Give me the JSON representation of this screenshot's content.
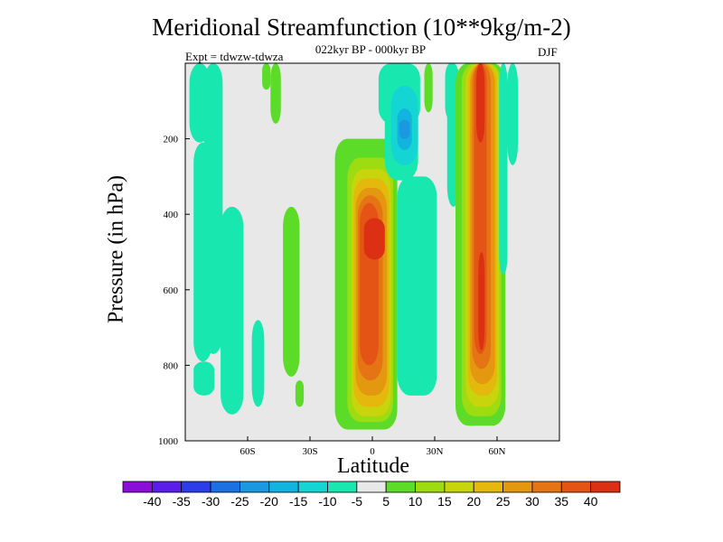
{
  "chart_data": {
    "type": "heatmap",
    "title": "Meridional Streamfunction (10**9kg/m-2)",
    "subtitle": "022kyr BP - 000kyr BP",
    "left_label": "Expt = tdwzw-tdwza",
    "right_label": "DJF",
    "xlabel": "Latitude",
    "ylabel": "Pressure (in hPa)",
    "xlim": [
      -90,
      90
    ],
    "ylim": [
      1000,
      0
    ],
    "x_ticks": [
      {
        "value": -60,
        "label": "60S"
      },
      {
        "value": -30,
        "label": "30S"
      },
      {
        "value": 0,
        "label": "0"
      },
      {
        "value": 30,
        "label": "30N"
      },
      {
        "value": 60,
        "label": "60N"
      }
    ],
    "y_ticks": [
      {
        "value": 200,
        "label": "200"
      },
      {
        "value": 400,
        "label": "400"
      },
      {
        "value": 600,
        "label": "600"
      },
      {
        "value": 800,
        "label": "800"
      },
      {
        "value": 1000,
        "label": "1000"
      }
    ],
    "background_color": "#e8e8e8",
    "colorbar": {
      "labels": [
        "-40",
        "-35",
        "-30",
        "-25",
        "-20",
        "-15",
        "-10",
        "-5",
        "5",
        "10",
        "15",
        "20",
        "25",
        "30",
        "35",
        "40"
      ],
      "colors": [
        "#8a0ed8",
        "#5a1ee8",
        "#2c3ce8",
        "#1c70e0",
        "#1c98e0",
        "#10b4dc",
        "#14d4d4",
        "#18e8b0",
        "#e8e8e8",
        "#5cdc28",
        "#9cdc10",
        "#c8d40c",
        "#e4b80c",
        "#e49810",
        "#e47414",
        "#e45414",
        "#dc3014"
      ]
    },
    "regions": [
      {
        "lat_min": -88,
        "lat_max": -78,
        "p_top": 0,
        "p_bottom": 210,
        "value": -7,
        "color": "#18e8b0"
      },
      {
        "lat_min": -86,
        "lat_max": -77,
        "p_top": 210,
        "p_bottom": 790,
        "value": -7,
        "color": "#18e8b0"
      },
      {
        "lat_min": -86,
        "lat_max": -76,
        "p_top": 790,
        "p_bottom": 880,
        "value": -7,
        "color": "#18e8b0"
      },
      {
        "lat_min": -81,
        "lat_max": -72,
        "p_top": 0,
        "p_bottom": 770,
        "value": -7,
        "color": "#18e8b0"
      },
      {
        "lat_min": -73,
        "lat_max": -62,
        "p_top": 380,
        "p_bottom": 930,
        "value": -7,
        "color": "#18e8b0"
      },
      {
        "lat_min": -58,
        "lat_max": -52,
        "p_top": 680,
        "p_bottom": 910,
        "value": -7,
        "color": "#18e8b0"
      },
      {
        "lat_min": -53,
        "lat_max": -49,
        "p_top": 0,
        "p_bottom": 70,
        "value": 7,
        "color": "#5cdc28"
      },
      {
        "lat_min": -49,
        "lat_max": -44,
        "p_top": 0,
        "p_bottom": 160,
        "value": 7,
        "color": "#5cdc28"
      },
      {
        "lat_min": -43,
        "lat_max": -35,
        "p_top": 380,
        "p_bottom": 830,
        "value": 7,
        "color": "#5cdc28"
      },
      {
        "lat_min": -37,
        "lat_max": -33,
        "p_top": 840,
        "p_bottom": 910,
        "value": 7,
        "color": "#5cdc28"
      },
      {
        "lat_min": -18,
        "lat_max": 12,
        "p_top": 200,
        "p_bottom": 970,
        "value": 7,
        "color": "#5cdc28"
      },
      {
        "lat_min": -12,
        "lat_max": 10,
        "p_top": 250,
        "p_bottom": 950,
        "value": 12,
        "color": "#9cdc10"
      },
      {
        "lat_min": -10,
        "lat_max": 9,
        "p_top": 280,
        "p_bottom": 935,
        "value": 17,
        "color": "#c8d40c"
      },
      {
        "lat_min": -9,
        "lat_max": 8,
        "p_top": 305,
        "p_bottom": 910,
        "value": 22,
        "color": "#e4b80c"
      },
      {
        "lat_min": -8,
        "lat_max": 7,
        "p_top": 330,
        "p_bottom": 880,
        "value": 27,
        "color": "#e49810"
      },
      {
        "lat_min": -7,
        "lat_max": 5,
        "p_top": 350,
        "p_bottom": 840,
        "value": 32,
        "color": "#e47414"
      },
      {
        "lat_min": -6,
        "lat_max": 3,
        "p_top": 370,
        "p_bottom": 800,
        "value": 37,
        "color": "#e45414"
      },
      {
        "lat_min": -4,
        "lat_max": 6,
        "p_top": 410,
        "p_bottom": 520,
        "value": 42,
        "color": "#dc3014"
      },
      {
        "lat_min": 3,
        "lat_max": 23,
        "p_top": 0,
        "p_bottom": 160,
        "value": -7,
        "color": "#18e8b0"
      },
      {
        "lat_min": 6,
        "lat_max": 22,
        "p_top": 100,
        "p_bottom": 310,
        "value": -7,
        "color": "#18e8b0"
      },
      {
        "lat_min": 12,
        "lat_max": 31,
        "p_top": 300,
        "p_bottom": 880,
        "value": -7,
        "color": "#18e8b0"
      },
      {
        "lat_min": 9,
        "lat_max": 22,
        "p_top": 60,
        "p_bottom": 270,
        "value": -12,
        "color": "#14d4d4"
      },
      {
        "lat_min": 12,
        "lat_max": 19,
        "p_top": 120,
        "p_bottom": 230,
        "value": -17,
        "color": "#10b4dc"
      },
      {
        "lat_min": 13,
        "lat_max": 18,
        "p_top": 150,
        "p_bottom": 200,
        "value": -22,
        "color": "#1c98e0"
      },
      {
        "lat_min": 25,
        "lat_max": 29,
        "p_top": 0,
        "p_bottom": 130,
        "value": 7,
        "color": "#5cdc28"
      },
      {
        "lat_min": 35,
        "lat_max": 40,
        "p_top": 0,
        "p_bottom": 150,
        "value": -7,
        "color": "#18e8b0"
      },
      {
        "lat_min": 36,
        "lat_max": 42,
        "p_top": 0,
        "p_bottom": 380,
        "value": -7,
        "color": "#18e8b0"
      },
      {
        "lat_min": 40,
        "lat_max": 64,
        "p_top": 0,
        "p_bottom": 960,
        "value": 7,
        "color": "#5cdc28"
      },
      {
        "lat_min": 43,
        "lat_max": 62,
        "p_top": 0,
        "p_bottom": 935,
        "value": 12,
        "color": "#9cdc10"
      },
      {
        "lat_min": 45,
        "lat_max": 61,
        "p_top": 0,
        "p_bottom": 910,
        "value": 17,
        "color": "#c8d40c"
      },
      {
        "lat_min": 46,
        "lat_max": 60,
        "p_top": 0,
        "p_bottom": 880,
        "value": 22,
        "color": "#e4b80c"
      },
      {
        "lat_min": 47,
        "lat_max": 59,
        "p_top": 0,
        "p_bottom": 850,
        "value": 27,
        "color": "#e49810"
      },
      {
        "lat_min": 48,
        "lat_max": 57,
        "p_top": 0,
        "p_bottom": 810,
        "value": 32,
        "color": "#e47414"
      },
      {
        "lat_min": 49,
        "lat_max": 55,
        "p_top": 0,
        "p_bottom": 770,
        "value": 37,
        "color": "#e45414"
      },
      {
        "lat_min": 50,
        "lat_max": 54,
        "p_top": 0,
        "p_bottom": 210,
        "value": 42,
        "color": "#dc3014"
      },
      {
        "lat_min": 51,
        "lat_max": 54,
        "p_top": 500,
        "p_bottom": 760,
        "value": 42,
        "color": "#dc3014"
      },
      {
        "lat_min": 61,
        "lat_max": 65,
        "p_top": 0,
        "p_bottom": 560,
        "value": -7,
        "color": "#18e8b0"
      },
      {
        "lat_min": 65,
        "lat_max": 70,
        "p_top": 0,
        "p_bottom": 270,
        "value": -7,
        "color": "#18e8b0"
      }
    ]
  }
}
